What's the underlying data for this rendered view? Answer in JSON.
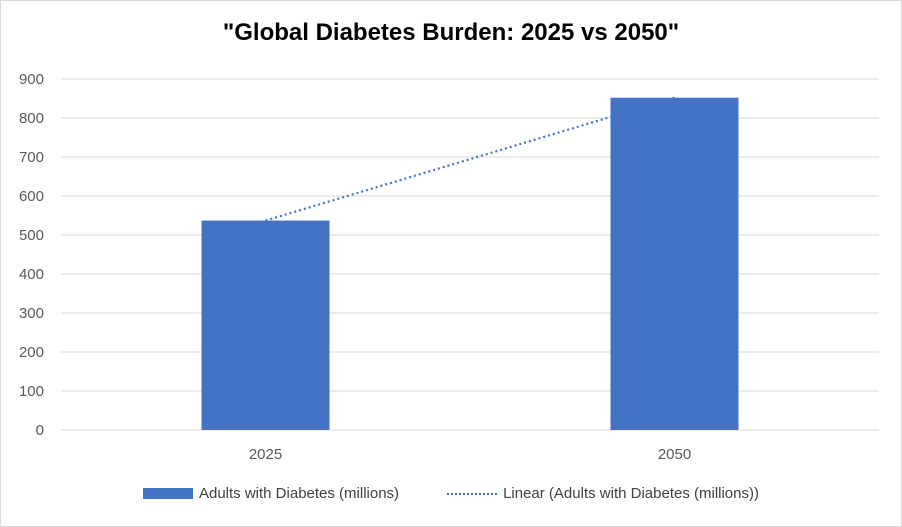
{
  "chart_data": {
    "type": "bar",
    "title": "\"Global Diabetes Burden: 2025 vs 2050\"",
    "categories": [
      "2025",
      "2050"
    ],
    "series": [
      {
        "name": "Adults with Diabetes (millions)",
        "values": [
          537,
          852
        ]
      }
    ],
    "trendline": {
      "name": "Linear (Adults with Diabetes (millions))",
      "type": "linear",
      "style": "dotted"
    },
    "ylim": [
      0,
      900
    ],
    "yticks": [
      0,
      100,
      200,
      300,
      400,
      500,
      600,
      700,
      800,
      900
    ],
    "grid": true,
    "legend_position": "bottom",
    "colors": {
      "bar": "#4472c4",
      "trendline": "#4472c4",
      "grid": "#d9d9d9",
      "axis_text": "#595959"
    }
  }
}
